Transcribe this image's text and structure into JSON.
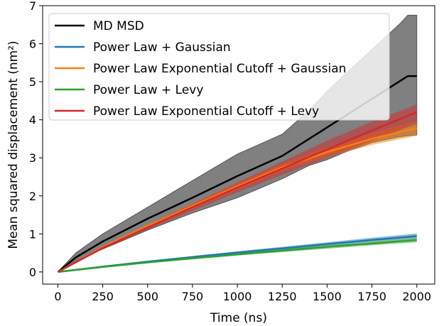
{
  "chart_data": {
    "type": "line",
    "xlabel": "Time (ns)",
    "ylabel": "Mean squared displacement (nm²)",
    "xlim": [
      -85,
      2100
    ],
    "ylim": [
      -0.32,
      7.0
    ],
    "xticks": [
      0,
      250,
      500,
      750,
      1000,
      1250,
      1500,
      1750,
      2000
    ],
    "yticks": [
      0,
      1,
      2,
      3,
      4,
      5,
      6,
      7
    ],
    "grid": false,
    "legend_position": "top-left",
    "series": [
      {
        "name": "MD MSD",
        "color": "#000000",
        "band_color": "#808080",
        "x": [
          0,
          100,
          250,
          500,
          750,
          1000,
          1250,
          1400,
          1500,
          1600,
          1750,
          1900,
          1950,
          2000
        ],
        "y": [
          0,
          0.38,
          0.8,
          1.4,
          1.95,
          2.52,
          3.05,
          3.5,
          3.8,
          4.1,
          4.55,
          5.0,
          5.15,
          5.15
        ],
        "y_upper": [
          0,
          0.5,
          1.0,
          1.7,
          2.4,
          3.1,
          3.62,
          4.25,
          4.75,
          5.2,
          5.85,
          6.5,
          6.75,
          6.75
        ],
        "y_lower": [
          0,
          0.3,
          0.6,
          1.1,
          1.55,
          1.95,
          2.45,
          2.8,
          2.95,
          3.15,
          3.4,
          3.55,
          3.58,
          3.6
        ]
      },
      {
        "name": "Power Law + Gaussian",
        "color": "#1f77b4",
        "x": [
          0,
          250,
          500,
          750,
          1000,
          1250,
          1500,
          1750,
          2000
        ],
        "y": [
          0,
          0.14,
          0.27,
          0.39,
          0.51,
          0.62,
          0.73,
          0.84,
          0.94
        ],
        "y_upper": [
          0,
          0.15,
          0.29,
          0.42,
          0.54,
          0.66,
          0.78,
          0.9,
          1.01
        ],
        "y_lower": [
          0,
          0.13,
          0.25,
          0.37,
          0.48,
          0.58,
          0.69,
          0.79,
          0.88
        ]
      },
      {
        "name": "Power Law Exponential Cutoff + Gaussian",
        "color": "#ff7f0e",
        "x": [
          0,
          250,
          500,
          750,
          1000,
          1250,
          1500,
          1750,
          2000
        ],
        "y": [
          0,
          0.65,
          1.2,
          1.73,
          2.25,
          2.75,
          3.15,
          3.5,
          3.78
        ],
        "y_upper": [
          0,
          0.68,
          1.25,
          1.8,
          2.33,
          2.84,
          3.27,
          3.66,
          3.98
        ],
        "y_lower": [
          0,
          0.62,
          1.15,
          1.66,
          2.17,
          2.66,
          3.03,
          3.34,
          3.58
        ]
      },
      {
        "name": "Power Law + Levy",
        "color": "#2ca02c",
        "x": [
          0,
          250,
          500,
          750,
          1000,
          1250,
          1500,
          1750,
          2000
        ],
        "y": [
          0,
          0.13,
          0.25,
          0.36,
          0.46,
          0.56,
          0.66,
          0.75,
          0.84
        ],
        "y_upper": [
          0,
          0.14,
          0.27,
          0.39,
          0.49,
          0.6,
          0.7,
          0.8,
          0.9
        ],
        "y_lower": [
          0,
          0.12,
          0.23,
          0.33,
          0.43,
          0.52,
          0.61,
          0.7,
          0.78
        ]
      },
      {
        "name": "Power Law Exponential Cutoff + Levy",
        "color": "#d62728",
        "x": [
          0,
          250,
          500,
          750,
          1000,
          1250,
          1500,
          1750,
          2000
        ],
        "y": [
          0,
          0.63,
          1.17,
          1.7,
          2.22,
          2.72,
          3.22,
          3.72,
          4.2
        ],
        "y_upper": [
          0,
          0.66,
          1.23,
          1.79,
          2.35,
          2.9,
          3.45,
          3.95,
          4.4
        ],
        "y_lower": [
          0,
          0.6,
          1.11,
          1.61,
          2.09,
          2.55,
          3.0,
          3.45,
          3.9
        ]
      }
    ]
  }
}
